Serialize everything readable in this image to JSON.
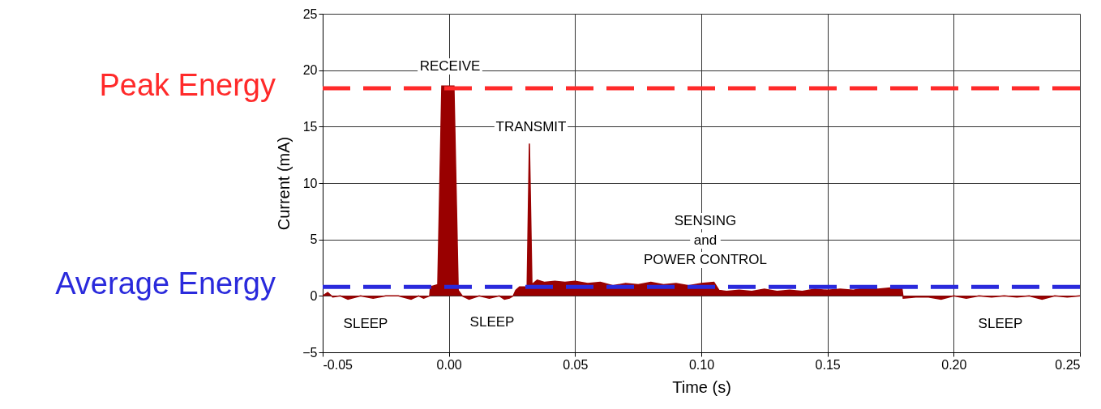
{
  "chart_data": {
    "type": "area",
    "xlabel": "Time (s)",
    "ylabel": "Current (mA)",
    "xlim": [
      -0.05,
      0.25
    ],
    "ylim": [
      -5,
      25
    ],
    "xticks": [
      {
        "value": -0.05,
        "label": "-0.05"
      },
      {
        "value": 0,
        "label": "0.00"
      },
      {
        "value": 0.05,
        "label": "0.05"
      },
      {
        "value": 0.1,
        "label": "0.10"
      },
      {
        "value": 0.15,
        "label": "0.15"
      },
      {
        "value": 0.2,
        "label": "0.20"
      },
      {
        "value": 0.25,
        "label": "0.25"
      }
    ],
    "yticks": [
      -5,
      0,
      5,
      10,
      15,
      20,
      25
    ],
    "grid": true,
    "series": [
      {
        "color": "#990000",
        "x": [
          -0.05,
          -0.048,
          -0.046,
          -0.043,
          -0.04,
          -0.035,
          -0.03,
          -0.025,
          -0.02,
          -0.015,
          -0.012,
          -0.01,
          -0.0076,
          -0.0073,
          -0.0044,
          -0.0028,
          0.002,
          0.0037,
          0.0053,
          0.008,
          0.012,
          0.016,
          0.02,
          0.022,
          0.024,
          0.0255,
          0.0265,
          0.028,
          0.031,
          0.0319,
          0.0329,
          0.035,
          0.038,
          0.042,
          0.046,
          0.05,
          0.055,
          0.06,
          0.065,
          0.07,
          0.075,
          0.08,
          0.085,
          0.09,
          0.095,
          0.1,
          0.105,
          0.107,
          0.11,
          0.115,
          0.12,
          0.125,
          0.13,
          0.135,
          0.14,
          0.145,
          0.15,
          0.155,
          0.16,
          0.165,
          0.17,
          0.175,
          0.1794,
          0.18,
          0.185,
          0.19,
          0.195,
          0.2,
          0.205,
          0.21,
          0.215,
          0.22,
          0.225,
          0.23,
          0.235,
          0.24,
          0.245,
          0.25
        ],
        "values": [
          0,
          0.3,
          -0.1,
          0,
          -0.3,
          0,
          -0.2,
          0,
          0,
          -0.3,
          0,
          -0.2,
          0,
          0.8,
          1.0,
          18.6,
          18.6,
          0.5,
          0,
          -0.3,
          0,
          -0.2,
          0,
          -0.3,
          -0.2,
          0,
          0.5,
          0.8,
          0.8,
          13.5,
          1.0,
          1.4,
          1.2,
          1.3,
          1.2,
          1.3,
          1.1,
          1.2,
          0.9,
          1.1,
          1.0,
          1.2,
          1.0,
          1.1,
          0.9,
          1.1,
          1.2,
          0.5,
          0.4,
          0.5,
          0.4,
          0.6,
          0.4,
          0.5,
          0.4,
          0.6,
          0.5,
          0.6,
          0.5,
          0.7,
          0.6,
          0.7,
          0.8,
          -0.2,
          -0.1,
          -0.1,
          -0.3,
          0,
          -0.2,
          0,
          -0.1,
          0,
          -0.1,
          0,
          -0.3,
          0,
          -0.1,
          0
        ]
      }
    ],
    "ref_lines": [
      {
        "axis": "y",
        "value": 18.4,
        "label": "Peak Energy",
        "color": "#ff2a2a",
        "line_style": "dashed"
      },
      {
        "axis": "y",
        "value": 0.8,
        "label": "Average Energy",
        "color": "#2a2adc",
        "line_style": "dashed"
      }
    ],
    "annotations": [
      "RECEIVE",
      "TRANSMIT",
      "SENSING",
      "and",
      "POWER CONTROL",
      "SLEEP",
      "SLEEP",
      "SLEEP"
    ]
  }
}
